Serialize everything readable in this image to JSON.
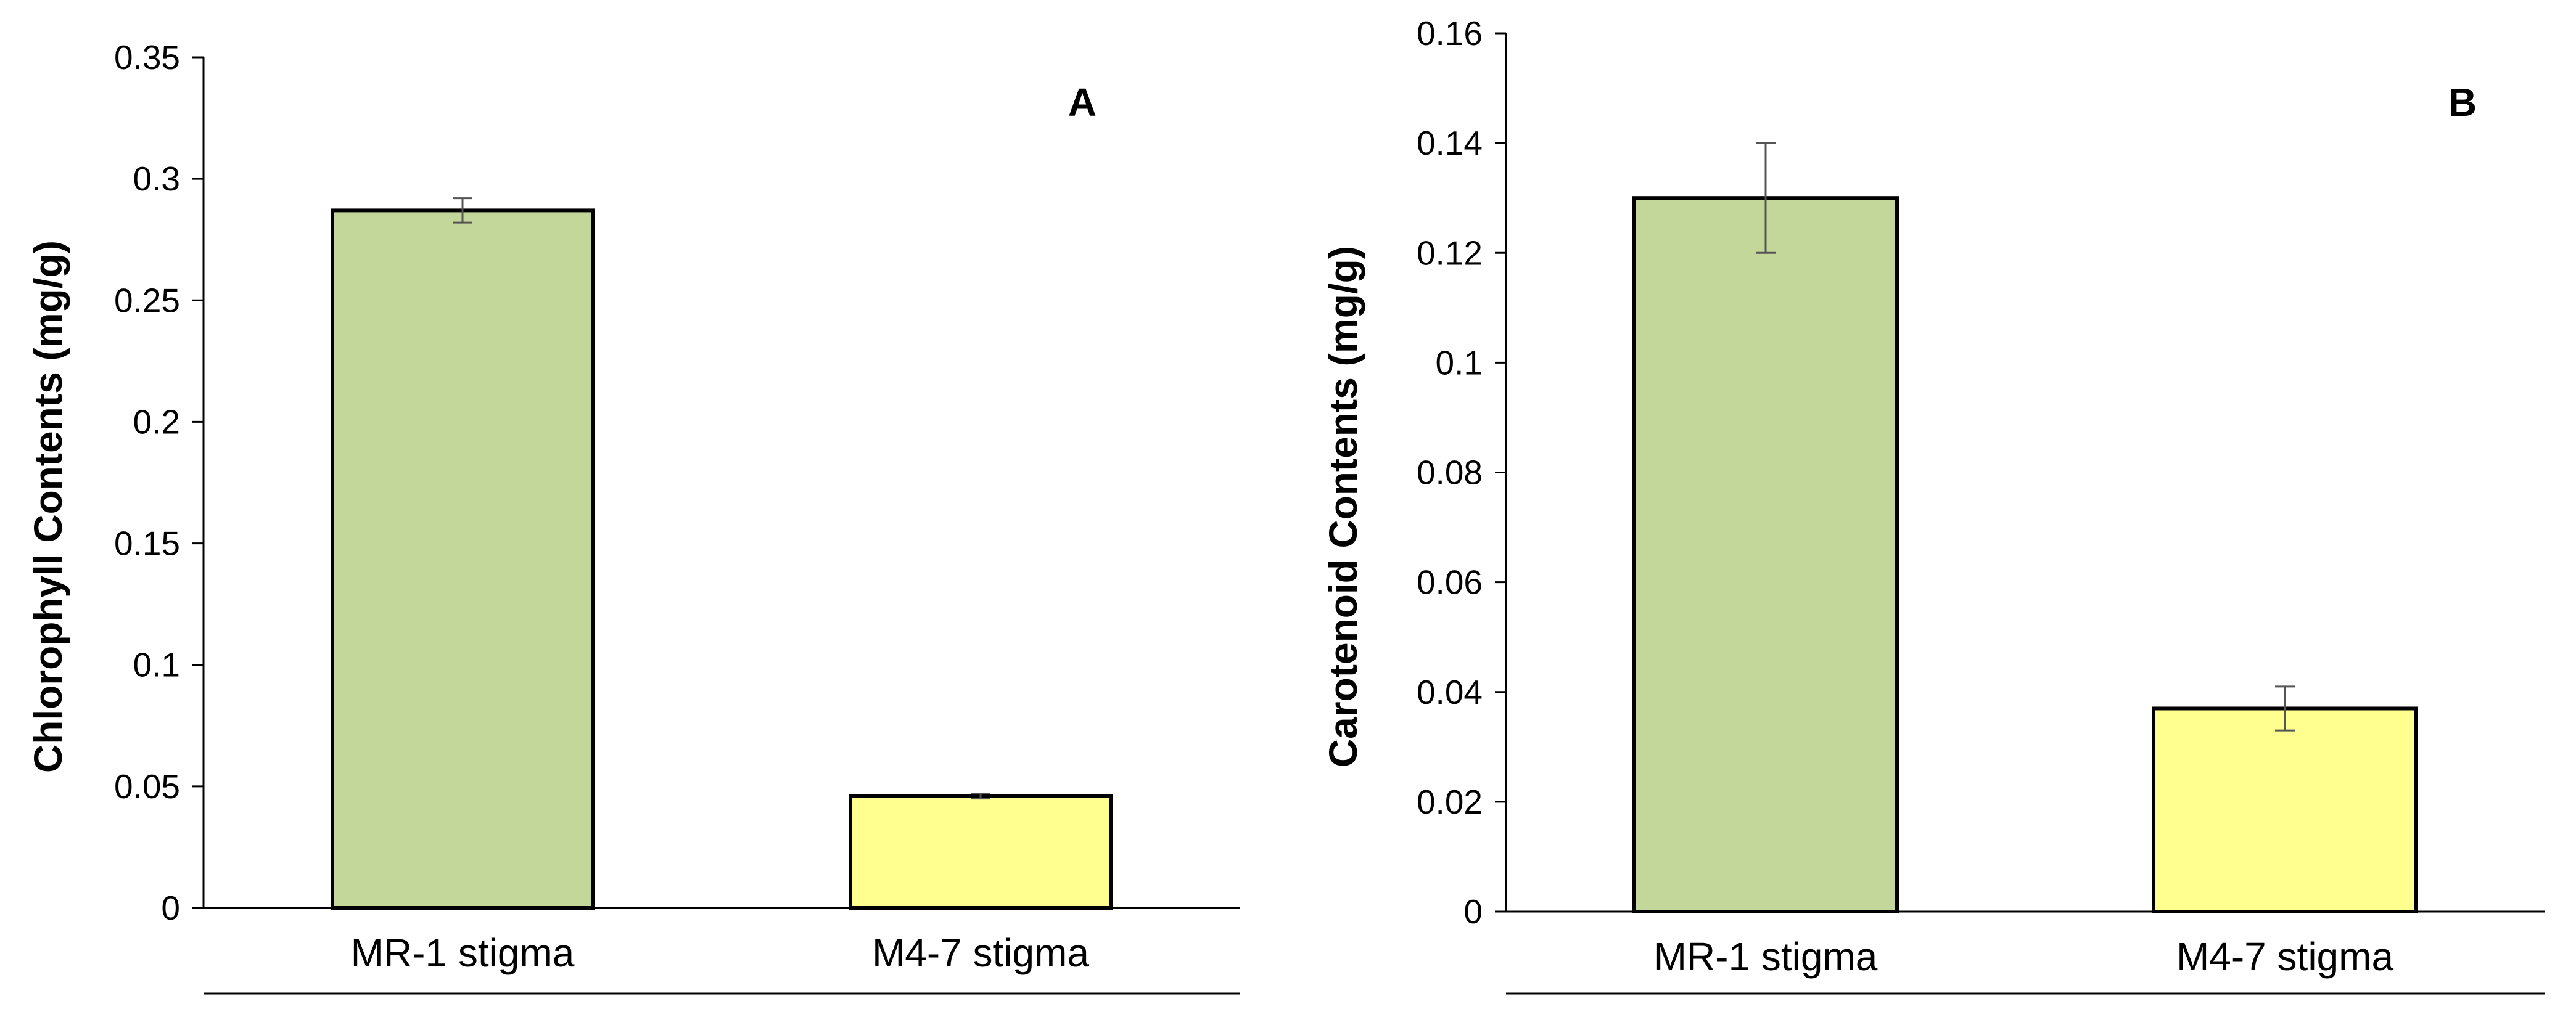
{
  "chart_data": [
    {
      "type": "bar",
      "panel_label": "A",
      "title": "",
      "xlabel": "",
      "ylabel": "Chlorophyll Contents (mg/g)",
      "ylim": [
        0,
        0.35
      ],
      "yticks": [
        0,
        0.05,
        0.1,
        0.15,
        0.2,
        0.25,
        0.3,
        0.35
      ],
      "ytick_labels": [
        "0",
        "0.05",
        "0.1",
        "0.15",
        "0.2",
        "0.25",
        "0.3",
        "0.35"
      ],
      "categories": [
        "MR-1 stigma",
        "M4-7 stigma"
      ],
      "values": [
        0.287,
        0.046
      ],
      "errors": [
        0.005,
        0.001
      ],
      "colors": [
        "#c4d79b",
        "#ffff8f"
      ],
      "grid": false
    },
    {
      "type": "bar",
      "panel_label": "B",
      "title": "",
      "xlabel": "",
      "ylabel": "Carotenoid Contents (mg/g)",
      "ylim": [
        0,
        0.16
      ],
      "yticks": [
        0,
        0.02,
        0.04,
        0.06,
        0.08,
        0.1,
        0.12,
        0.14,
        0.16
      ],
      "ytick_labels": [
        "0",
        "0.02",
        "0.04",
        "0.06",
        "0.08",
        "0.1",
        "0.12",
        "0.14",
        "0.16"
      ],
      "categories": [
        "MR-1 stigma",
        "M4-7 stigma"
      ],
      "values": [
        0.13,
        0.037
      ],
      "errors": [
        0.01,
        0.004
      ],
      "colors": [
        "#c4d79b",
        "#ffff8f"
      ],
      "grid": false
    }
  ]
}
